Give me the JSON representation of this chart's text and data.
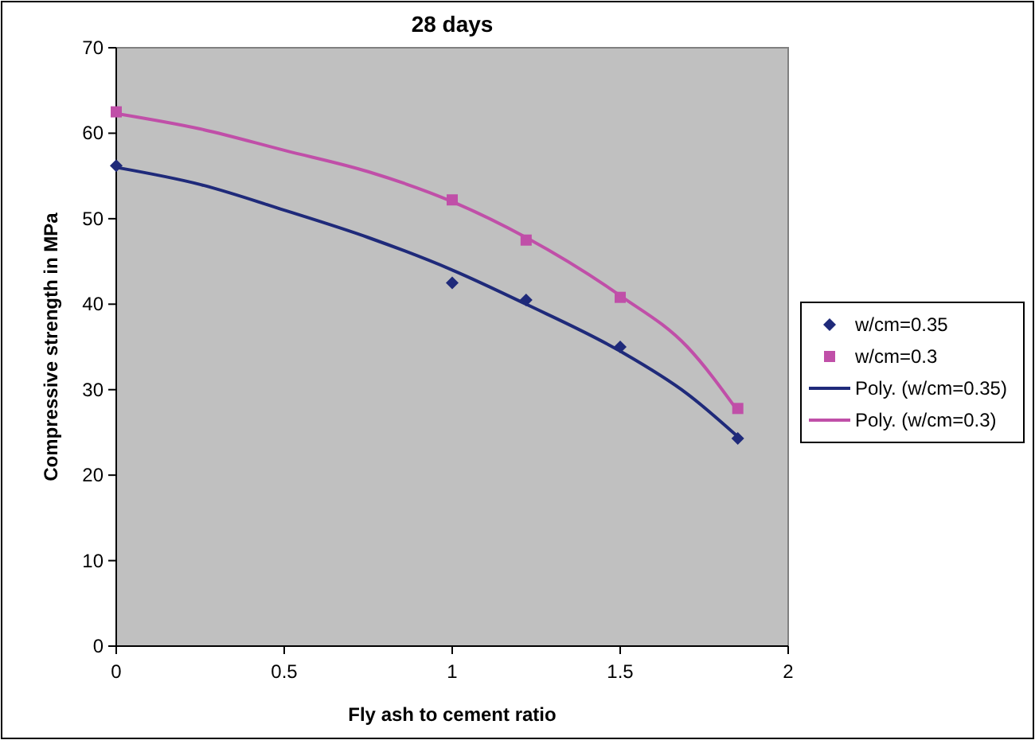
{
  "chart_data": {
    "type": "scatter",
    "title": "28 days",
    "xlabel": "Fly ash to cement ratio",
    "ylabel": "Compressive strength in MPa",
    "xlim": [
      0,
      2
    ],
    "xticks": [
      0,
      0.5,
      1,
      1.5,
      2
    ],
    "ylim": [
      0,
      70
    ],
    "yticks": [
      0,
      10,
      20,
      30,
      40,
      50,
      60,
      70
    ],
    "grid": false,
    "legend": "right",
    "series": [
      {
        "name": "w/cm=0.35",
        "color": "#1f2a7a",
        "marker": "diamond",
        "x": [
          0,
          1,
          1.22,
          1.5,
          1.85
        ],
        "values": [
          56.2,
          42.5,
          40.5,
          35,
          24.3
        ]
      },
      {
        "name": "w/cm=0.3",
        "color": "#c04fa8",
        "marker": "square",
        "x": [
          0,
          1,
          1.22,
          1.5,
          1.85
        ],
        "values": [
          62.5,
          52.2,
          47.5,
          40.8,
          27.8
        ]
      },
      {
        "name": "Poly. (w/cm=0.35)",
        "type": "line",
        "color": "#1f2a7a",
        "marker": "none",
        "x": [
          0,
          0.25,
          0.5,
          0.75,
          1,
          1.22,
          1.5,
          1.7,
          1.85
        ],
        "values": [
          56,
          54,
          51,
          47.8,
          44,
          40,
          34.5,
          29.5,
          24.5
        ]
      },
      {
        "name": "Poly. (w/cm=0.3)",
        "type": "line",
        "color": "#c04fa8",
        "marker": "none",
        "x": [
          0,
          0.25,
          0.5,
          0.75,
          1,
          1.22,
          1.5,
          1.7,
          1.85
        ],
        "values": [
          62.3,
          60.5,
          58,
          55.5,
          52,
          47.8,
          41,
          35,
          27.5
        ]
      }
    ]
  }
}
